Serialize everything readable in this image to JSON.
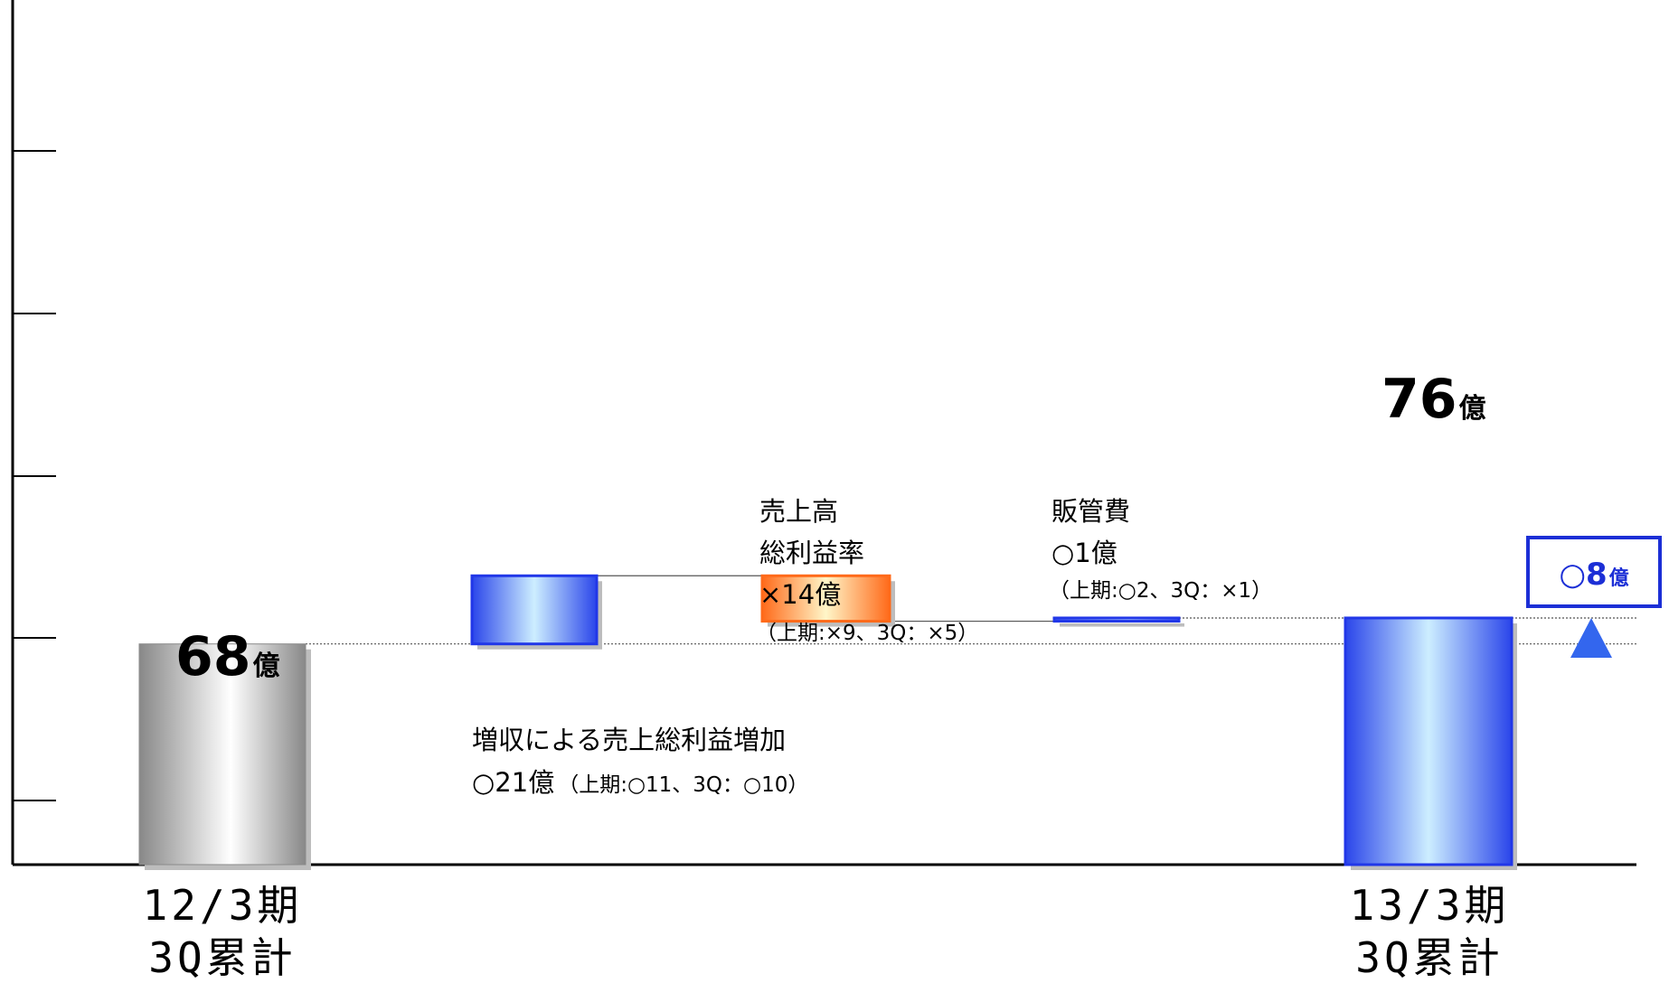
{
  "chart_data": {
    "type": "waterfall",
    "unit": "億",
    "ylim": [
      0,
      130
    ],
    "steps": [
      {
        "id": "start",
        "kind": "total",
        "value": 68,
        "label_num": "68",
        "label_unit": "億",
        "category": [
          "12/3期",
          "3Q累計"
        ],
        "style": "gray"
      },
      {
        "id": "sales-increase",
        "kind": "increase",
        "delta": 21,
        "annotation": [
          "増収による売上総利益増加"
        ],
        "annotation_detail": {
          "main": "○21億",
          "sub": "（上期:○11、3Q：○10）"
        },
        "style": "blue"
      },
      {
        "id": "gross-margin",
        "kind": "decrease",
        "delta": -14,
        "annotation": [
          "売上高",
          "総利益率",
          "×14億"
        ],
        "annotation_sub": "（上期:×9、3Q：×5）",
        "style": "orange"
      },
      {
        "id": "sga",
        "kind": "increase",
        "delta": 1,
        "annotation": [
          "販管費",
          "○1億"
        ],
        "annotation_sub": "（上期:○2、3Q：×1）",
        "style": "blue"
      },
      {
        "id": "end",
        "kind": "total",
        "value": 76,
        "label_num": "76",
        "label_unit": "億",
        "category": [
          "13/3期",
          "3Q累計"
        ],
        "style": "blue"
      }
    ],
    "change_badge": {
      "num": "○8",
      "unit": "億"
    },
    "colors": {
      "blue_edge": "#2137e8",
      "blue_light": "#cdeeff",
      "orange_edge": "#ff6a1a",
      "orange_light": "#fff6c8",
      "gray_dark": "#8a8a8a",
      "gray_light": "#ffffff",
      "arrow": "#3366ee",
      "badge_border": "#1c2fd6"
    }
  }
}
